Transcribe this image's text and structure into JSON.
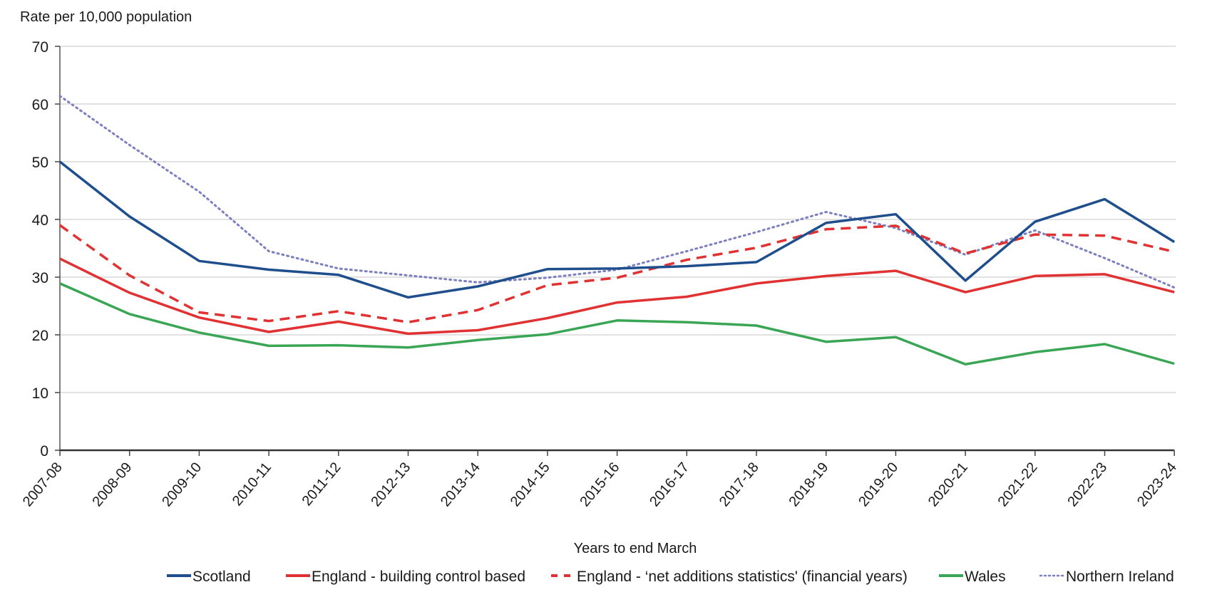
{
  "chart_data": {
    "type": "line",
    "title": "",
    "ylabel": "Rate per 10,000 population",
    "xlabel": "Years to end March",
    "ylim": [
      0,
      70
    ],
    "yticks": [
      0,
      10,
      20,
      30,
      40,
      50,
      60,
      70
    ],
    "grid": true,
    "legend_position": "bottom",
    "categories": [
      "2007-08",
      "2008-09",
      "2009-10",
      "2010-11",
      "2011-12",
      "2012-13",
      "2013-14",
      "2014-15",
      "2015-16",
      "2016-17",
      "2017-18",
      "2018-19",
      "2019-20",
      "2020-21",
      "2021-22",
      "2022-23",
      "2023-24"
    ],
    "series": [
      {
        "name": "Scotland",
        "color": "#1f4e8c",
        "style": "solid",
        "values": [
          50.0,
          40.5,
          32.8,
          31.3,
          30.4,
          26.5,
          28.4,
          31.4,
          31.5,
          31.9,
          32.6,
          39.4,
          40.9,
          29.4,
          39.6,
          43.5,
          36.1
        ]
      },
      {
        "name": "England - building control based",
        "color": "#e03232",
        "style": "solid",
        "values": [
          33.2,
          27.3,
          23.0,
          20.5,
          22.3,
          20.2,
          20.8,
          22.9,
          25.6,
          26.6,
          28.9,
          30.2,
          31.1,
          27.4,
          30.2,
          30.5,
          27.4
        ]
      },
      {
        "name": "England - ‘net additions statistics' (financial years)",
        "color": "#e03232",
        "style": "dashed",
        "values": [
          39.0,
          30.3,
          23.9,
          22.4,
          24.1,
          22.2,
          24.3,
          28.6,
          29.9,
          33.0,
          35.1,
          38.3,
          38.9,
          34.1,
          37.4,
          37.2,
          34.4
        ]
      },
      {
        "name": "Wales",
        "color": "#3aa655",
        "style": "solid",
        "values": [
          28.9,
          23.6,
          20.4,
          18.1,
          18.2,
          17.8,
          19.1,
          20.1,
          22.5,
          22.2,
          21.6,
          18.8,
          19.6,
          14.9,
          17.0,
          18.4,
          15.0
        ]
      },
      {
        "name": "Northern Ireland",
        "color": "#7b7fbf",
        "style": "dotted",
        "values": [
          61.4,
          52.9,
          44.8,
          34.5,
          31.5,
          30.3,
          29.1,
          29.9,
          31.3,
          34.5,
          37.8,
          41.3,
          38.5,
          33.9,
          38.1,
          33.3,
          28.2
        ]
      }
    ]
  }
}
